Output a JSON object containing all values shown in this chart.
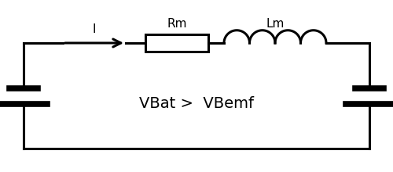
{
  "bg_color": "#ffffff",
  "line_color": "#000000",
  "line_width": 2.2,
  "fig_width": 5.0,
  "fig_height": 2.2,
  "label_I": "I",
  "label_Rm": "Rm",
  "label_Lm": "Lm",
  "label_center": "VBat >  VBemf",
  "font_size_labels": 11,
  "font_size_center": 14
}
